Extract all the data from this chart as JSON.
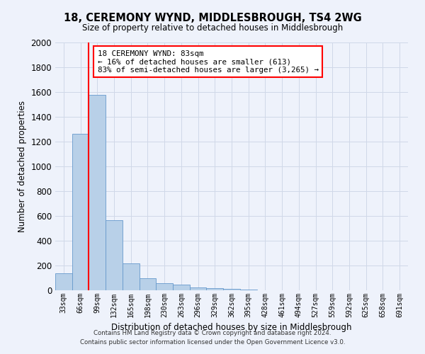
{
  "title": "18, CEREMONY WYND, MIDDLESBROUGH, TS4 2WG",
  "subtitle": "Size of property relative to detached houses in Middlesbrough",
  "xlabel": "Distribution of detached houses by size in Middlesbrough",
  "ylabel": "Number of detached properties",
  "footer_line1": "Contains HM Land Registry data © Crown copyright and database right 2024.",
  "footer_line2": "Contains public sector information licensed under the Open Government Licence v3.0.",
  "categories": [
    "33sqm",
    "66sqm",
    "99sqm",
    "132sqm",
    "165sqm",
    "198sqm",
    "230sqm",
    "263sqm",
    "296sqm",
    "329sqm",
    "362sqm",
    "395sqm",
    "428sqm",
    "461sqm",
    "494sqm",
    "527sqm",
    "559sqm",
    "592sqm",
    "625sqm",
    "658sqm",
    "691sqm"
  ],
  "values": [
    140,
    1265,
    1575,
    565,
    220,
    95,
    55,
    45,
    25,
    18,
    10,
    8,
    0,
    0,
    0,
    0,
    0,
    0,
    0,
    0,
    0
  ],
  "bar_color": "#b8d0e8",
  "bar_edge_color": "#6699cc",
  "vline_x": 1.5,
  "vline_color": "red",
  "ylim": [
    0,
    2000
  ],
  "yticks": [
    0,
    200,
    400,
    600,
    800,
    1000,
    1200,
    1400,
    1600,
    1800,
    2000
  ],
  "annotation_text": "18 CEREMONY WYND: 83sqm\n← 16% of detached houses are smaller (613)\n83% of semi-detached houses are larger (3,265) →",
  "annotation_box_color": "white",
  "annotation_box_edge": "red",
  "grid_color": "#d0d8e8",
  "bg_color": "#eef2fb"
}
